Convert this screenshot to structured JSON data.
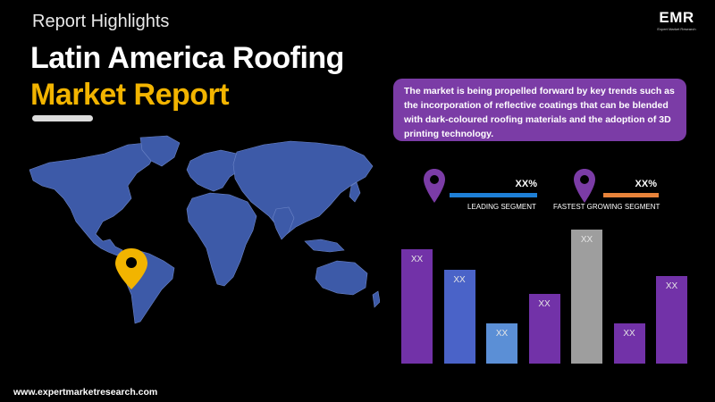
{
  "header": {
    "tag": "Report Highlights",
    "title_line1": "Latin America Roofing",
    "title_line2": "Market Report"
  },
  "logo": {
    "text": "EMR",
    "subtitle": "Expert Market Research"
  },
  "callout": {
    "text": "The market is being propelled forward by key trends such as the incorporation of reflective coatings that can be blended with dark-coloured roofing materials and the adoption of 3D printing technology."
  },
  "segments": [
    {
      "value": "XX%",
      "label": "LEADING SEGMENT",
      "bar_color": "#1e7fd6",
      "pin_color": "#7b3ca6"
    },
    {
      "value": "XX%",
      "label": "FASTEST GROWING SEGMENT",
      "bar_color": "#e8833a",
      "pin_color": "#7b3ca6"
    }
  ],
  "chart_data": {
    "type": "bar",
    "categories": [
      "",
      "",
      "",
      "",
      "",
      "",
      ""
    ],
    "values": [
      85,
      70,
      30,
      52,
      100,
      30,
      65
    ],
    "labels": [
      "XX",
      "XX",
      "XX",
      "XX",
      "XX",
      "XX",
      "XX"
    ],
    "colors": [
      "#7232a8",
      "#4a63c8",
      "#5b8fd6",
      "#7232a8",
      "#9e9e9e",
      "#7232a8",
      "#7232a8"
    ],
    "ylim": [
      0,
      100
    ]
  },
  "footer": {
    "url": "www.expertmarketresearch.com"
  },
  "colors": {
    "accent_yellow": "#f2b400",
    "accent_purple": "#7b3ca6",
    "map_fill": "#3d5aa8",
    "map_highlight_pin": "#f2b400"
  }
}
